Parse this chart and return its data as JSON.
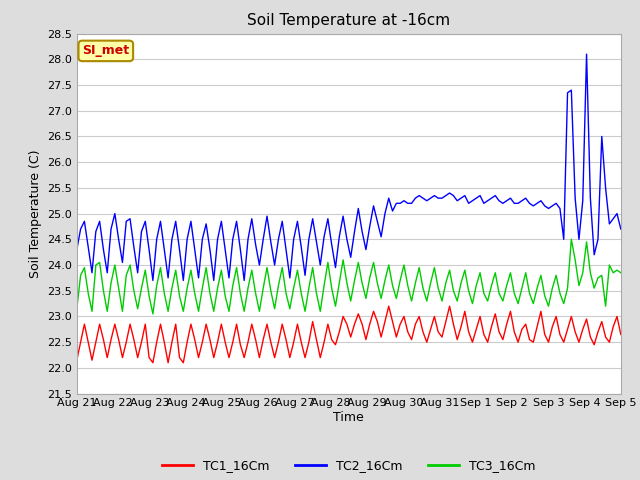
{
  "title": "Soil Temperature at -16cm",
  "xlabel": "Time",
  "ylabel": "Soil Temperature (C)",
  "ylim": [
    21.5,
    28.5
  ],
  "background_color": "#dddddd",
  "plot_bg_color": "#ffffff",
  "grid_color": "#cccccc",
  "annotation_text": "SI_met",
  "annotation_bg": "#ffffaa",
  "annotation_border": "#aa8800",
  "annotation_fg": "#cc0000",
  "line_colors": {
    "TC1_16Cm": "#ff0000",
    "TC2_16Cm": "#0000ff",
    "TC3_16Cm": "#00cc00"
  },
  "legend_labels": [
    "TC1_16Cm",
    "TC2_16Cm",
    "TC3_16Cm"
  ],
  "x_tick_labels": [
    "Aug 21",
    "Aug 22",
    "Aug 23",
    "Aug 24",
    "Aug 25",
    "Aug 26",
    "Aug 27",
    "Aug 28",
    "Aug 29",
    "Aug 30",
    "Aug 31",
    "Sep 1",
    "Sep 2",
    "Sep 3",
    "Sep 4",
    "Sep 5"
  ],
  "TC1_16Cm": [
    22.15,
    22.5,
    22.85,
    22.5,
    22.15,
    22.5,
    22.85,
    22.55,
    22.2,
    22.55,
    22.85,
    22.55,
    22.2,
    22.5,
    22.85,
    22.55,
    22.2,
    22.5,
    22.85,
    22.2,
    22.1,
    22.5,
    22.85,
    22.5,
    22.1,
    22.5,
    22.85,
    22.2,
    22.1,
    22.5,
    22.85,
    22.55,
    22.2,
    22.5,
    22.85,
    22.55,
    22.2,
    22.5,
    22.85,
    22.5,
    22.2,
    22.5,
    22.85,
    22.45,
    22.2,
    22.5,
    22.85,
    22.55,
    22.2,
    22.55,
    22.85,
    22.5,
    22.2,
    22.5,
    22.85,
    22.55,
    22.2,
    22.5,
    22.85,
    22.5,
    22.2,
    22.5,
    22.9,
    22.55,
    22.2,
    22.5,
    22.85,
    22.55,
    22.45,
    22.7,
    23.0,
    22.85,
    22.6,
    22.85,
    23.05,
    22.85,
    22.55,
    22.85,
    23.1,
    22.9,
    22.6,
    22.9,
    23.2,
    22.9,
    22.6,
    22.85,
    23.0,
    22.7,
    22.55,
    22.85,
    23.0,
    22.7,
    22.5,
    22.75,
    23.0,
    22.7,
    22.6,
    22.9,
    23.2,
    22.85,
    22.55,
    22.8,
    23.1,
    22.7,
    22.5,
    22.75,
    23.0,
    22.65,
    22.5,
    22.8,
    23.05,
    22.7,
    22.55,
    22.85,
    23.1,
    22.7,
    22.5,
    22.75,
    22.85,
    22.55,
    22.5,
    22.8,
    23.1,
    22.65,
    22.5,
    22.8,
    23.0,
    22.65,
    22.5,
    22.75,
    23.0,
    22.7,
    22.5,
    22.75,
    22.95,
    22.6,
    22.45,
    22.7,
    22.9,
    22.6,
    22.5,
    22.8,
    23.0,
    22.65
  ],
  "TC2_16Cm": [
    24.3,
    24.7,
    24.85,
    24.35,
    23.85,
    24.65,
    24.85,
    24.3,
    23.85,
    24.7,
    25.0,
    24.5,
    24.05,
    24.85,
    24.9,
    24.35,
    23.85,
    24.65,
    24.85,
    24.3,
    23.7,
    24.5,
    24.85,
    24.3,
    23.75,
    24.5,
    24.85,
    24.3,
    23.7,
    24.5,
    24.85,
    24.3,
    23.75,
    24.5,
    24.8,
    24.3,
    23.7,
    24.5,
    24.85,
    24.3,
    23.75,
    24.5,
    24.85,
    24.3,
    23.7,
    24.5,
    24.9,
    24.4,
    24.0,
    24.5,
    24.95,
    24.45,
    24.0,
    24.5,
    24.85,
    24.3,
    23.75,
    24.5,
    24.85,
    24.35,
    23.8,
    24.5,
    24.9,
    24.45,
    24.0,
    24.55,
    24.9,
    24.4,
    23.95,
    24.55,
    24.95,
    24.5,
    24.15,
    24.65,
    25.1,
    24.65,
    24.3,
    24.75,
    25.15,
    24.85,
    24.55,
    25.0,
    25.3,
    25.05,
    25.2,
    25.2,
    25.25,
    25.2,
    25.2,
    25.3,
    25.35,
    25.3,
    25.25,
    25.3,
    25.35,
    25.3,
    25.3,
    25.35,
    25.4,
    25.35,
    25.25,
    25.3,
    25.35,
    25.2,
    25.25,
    25.3,
    25.35,
    25.2,
    25.25,
    25.3,
    25.35,
    25.25,
    25.2,
    25.25,
    25.3,
    25.2,
    25.2,
    25.25,
    25.3,
    25.2,
    25.15,
    25.2,
    25.25,
    25.15,
    25.1,
    25.15,
    25.2,
    25.1,
    24.5,
    27.35,
    27.4,
    25.3,
    24.5,
    25.25,
    28.1,
    25.3,
    24.2,
    24.5,
    26.5,
    25.5,
    24.8,
    24.9,
    25.0,
    24.7
  ],
  "TC3_16Cm": [
    23.15,
    23.8,
    23.95,
    23.45,
    23.1,
    24.0,
    24.05,
    23.5,
    23.1,
    23.65,
    24.0,
    23.55,
    23.1,
    23.8,
    24.0,
    23.5,
    23.15,
    23.55,
    23.9,
    23.4,
    23.05,
    23.6,
    23.95,
    23.45,
    23.1,
    23.55,
    23.9,
    23.4,
    23.1,
    23.55,
    23.9,
    23.45,
    23.1,
    23.55,
    23.95,
    23.45,
    23.1,
    23.55,
    23.9,
    23.4,
    23.1,
    23.6,
    23.95,
    23.45,
    23.1,
    23.55,
    23.9,
    23.45,
    23.1,
    23.55,
    23.95,
    23.5,
    23.15,
    23.6,
    23.95,
    23.45,
    23.15,
    23.55,
    23.9,
    23.45,
    23.1,
    23.55,
    23.95,
    23.45,
    23.1,
    23.6,
    24.05,
    23.55,
    23.2,
    23.65,
    24.1,
    23.65,
    23.3,
    23.7,
    24.05,
    23.65,
    23.35,
    23.75,
    24.05,
    23.65,
    23.35,
    23.7,
    24.0,
    23.6,
    23.35,
    23.7,
    24.0,
    23.6,
    23.3,
    23.65,
    23.95,
    23.55,
    23.3,
    23.65,
    23.95,
    23.55,
    23.3,
    23.65,
    23.9,
    23.5,
    23.3,
    23.65,
    23.9,
    23.5,
    23.25,
    23.6,
    23.85,
    23.45,
    23.3,
    23.6,
    23.85,
    23.45,
    23.3,
    23.6,
    23.85,
    23.45,
    23.25,
    23.55,
    23.85,
    23.45,
    23.25,
    23.55,
    23.8,
    23.4,
    23.2,
    23.55,
    23.8,
    23.45,
    23.25,
    23.55,
    24.5,
    24.1,
    23.6,
    23.85,
    24.45,
    23.85,
    23.55,
    23.75,
    23.8,
    23.2,
    24.0,
    23.85,
    23.9,
    23.85
  ]
}
